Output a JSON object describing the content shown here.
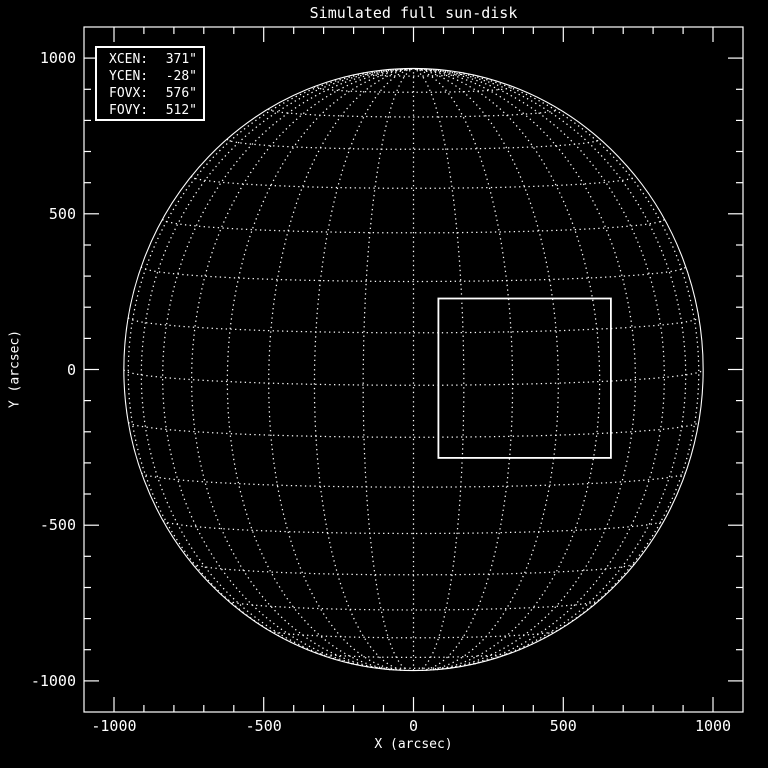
{
  "plot": {
    "title": "Simulated full sun-disk",
    "xlabel": "X (arcsec)",
    "ylabel": "Y (arcsec)"
  },
  "legend": {
    "rows": [
      {
        "label": "XCEN:",
        "value": "371\""
      },
      {
        "label": "YCEN:",
        "value": "-28\""
      },
      {
        "label": "FOVX:",
        "value": "576\""
      },
      {
        "label": "FOVY:",
        "value": "512\""
      }
    ]
  },
  "chart_data": {
    "type": "line",
    "title": "Simulated full sun-disk",
    "xlabel": "X (arcsec)",
    "ylabel": "Y (arcsec)",
    "xlim": [
      -1100,
      1100
    ],
    "ylim": [
      -1100,
      1100
    ],
    "x_major_ticks": [
      -1000,
      -500,
      0,
      500,
      1000
    ],
    "x_tick_labels": [
      "-1000",
      "-500",
      "0",
      "500",
      "1000"
    ],
    "y_major_ticks": [
      -1000,
      -500,
      0,
      500,
      1000
    ],
    "y_tick_labels": [
      "-1000",
      "-500",
      "0",
      "500",
      "1000"
    ],
    "minor_tick_step": 100,
    "ticks_direction": "inward",
    "legend_position": "top-left",
    "sun_disk": {
      "center_x_arcsec": 0,
      "center_y_arcsec": 0,
      "radius_arcsec": 967,
      "grid_spacing_deg": 10,
      "b0_tilt_deg": 3,
      "lat_max_deg": 80,
      "lon_max_deg": 80,
      "grid_line_style": "dotted"
    },
    "fov_box": {
      "xcen_arcsec": 371,
      "ycen_arcsec": -28,
      "fovx_arcsec": 576,
      "fovy_arcsec": 512
    },
    "colors": {
      "background": "#000000",
      "foreground": "#ffffff"
    }
  }
}
